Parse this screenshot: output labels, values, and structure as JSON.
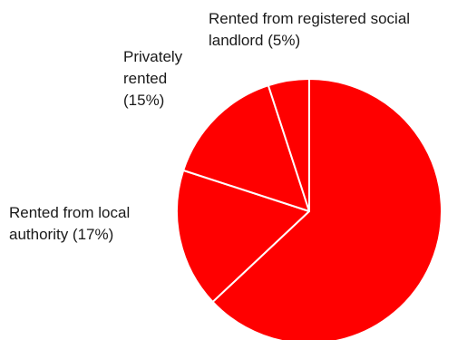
{
  "chart_data": {
    "type": "pie",
    "title": "",
    "start": "top",
    "direction": "clockwise",
    "slices": [
      {
        "label": "",
        "value": 63,
        "color": "#ff0000"
      },
      {
        "label": "Rented from local\nauthority (17%)",
        "value": 17,
        "color": "#ff0000"
      },
      {
        "label": "Privately\nrented\n(15%)",
        "value": 15,
        "color": "#ff0000"
      },
      {
        "label": "Rented from registered social\nlandlord (5%)",
        "value": 5,
        "color": "#ff0000"
      }
    ]
  },
  "labels": {
    "social_landlord": "Rented from registered social\nlandlord (5%)",
    "private": "Privately\nrented\n(15%)",
    "local_authority": "Rented from local\nauthority (17%)"
  }
}
